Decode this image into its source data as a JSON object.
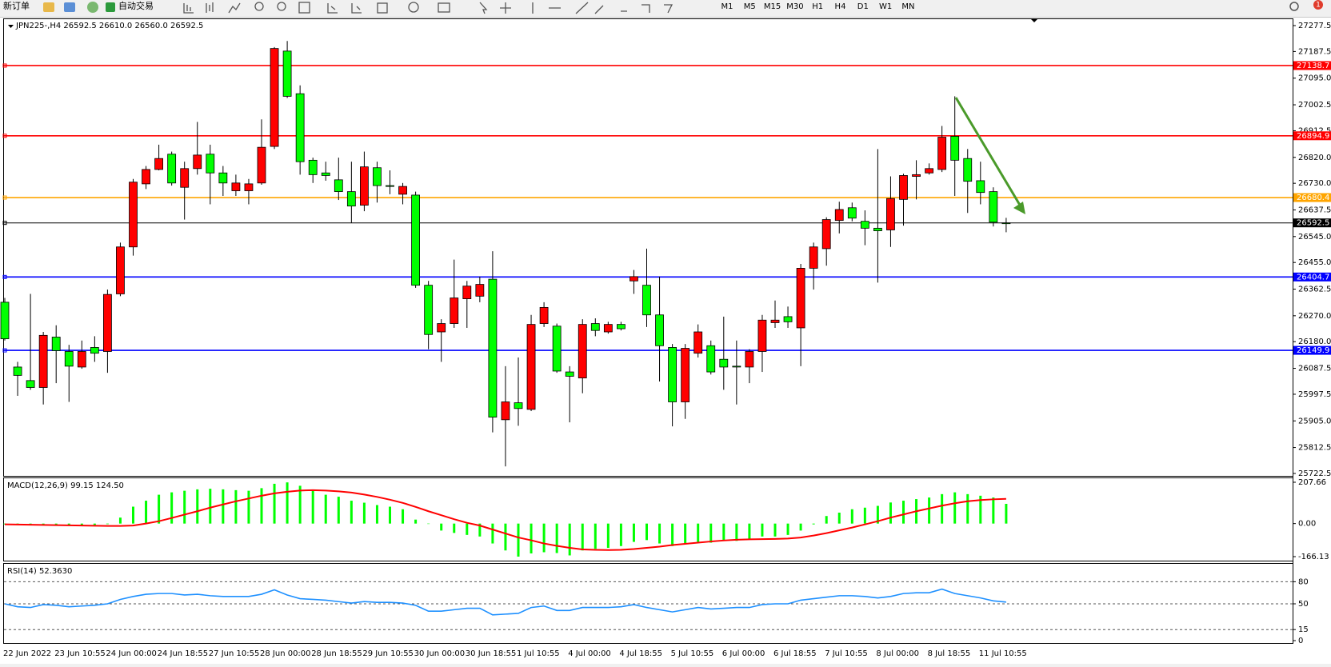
{
  "toolbar": {
    "new_order": "新订单",
    "auto_trading": "自动交易",
    "timeframes": [
      "M1",
      "M5",
      "M15",
      "M30",
      "H1",
      "H4",
      "D1",
      "W1",
      "MN"
    ],
    "badge": 1
  },
  "chart_data": [
    {
      "type": "candlestick",
      "title": "JPN225-,H4  26592.5 26610.0 26560.0 26592.5",
      "categories": [
        "22 Jun 2022",
        null,
        null,
        null,
        "23 Jun 10:55",
        null,
        null,
        null,
        "24 Jun 00:00",
        null,
        null,
        null,
        "24 Jun 18:55",
        null,
        null,
        null,
        "27 Jun 10:55",
        null,
        null,
        null,
        "28 Jun 00:00",
        null,
        null,
        null,
        "28 Jun 18:55",
        null,
        null,
        null,
        "29 Jun 10:55",
        null,
        null,
        null,
        "30 Jun 00:00",
        null,
        null,
        null,
        "30 Jun 18:55",
        null,
        null,
        null,
        "1 Jul 10:55",
        null,
        null,
        null,
        "4 Jul 00:00",
        null,
        null,
        null,
        "4 Jul 18:55",
        null,
        null,
        null,
        "5 Jul 10:55",
        null,
        null,
        null,
        "6 Jul 00:00",
        null,
        null,
        null,
        "6 Jul 18:55",
        null,
        null,
        null,
        "7 Jul 10:55",
        null,
        null,
        null,
        "8 Jul 00:00",
        null,
        null,
        null,
        "8 Jul 18:55",
        null,
        null,
        null,
        "11 Jul 10:55",
        null,
        null
      ],
      "open": [
        26317,
        26092,
        26045,
        26021,
        26196,
        26146,
        26092,
        26160,
        26146,
        26346,
        26509,
        26728,
        26778,
        26831,
        26716,
        26781,
        26831,
        26766,
        26704,
        26704,
        26731,
        26858,
        27189,
        27041,
        26810,
        26766,
        26742,
        26701,
        26654,
        26784,
        26722,
        26692,
        26689,
        26376,
        26214,
        26243,
        26329,
        26338,
        26397,
        25909,
        25968,
        25945,
        26243,
        26234,
        26075,
        26054,
        26243,
        26214,
        26240,
        26391,
        26376,
        26273,
        26160,
        25971,
        26140,
        26166,
        26119,
        26095,
        26092,
        26146,
        26246,
        26267,
        26228,
        26435,
        26503,
        26601,
        26645,
        26598,
        26574,
        26568,
        26674,
        26754,
        26766,
        26778,
        26893,
        26816,
        26739,
        26701,
        26592.5
      ],
      "high": [
        26332,
        26110,
        26346,
        26214,
        26237,
        26169,
        26184,
        26199,
        26361,
        26524,
        26745,
        26790,
        26864,
        26840,
        26805,
        26943,
        26864,
        26790,
        26760,
        26745,
        26952,
        27203,
        27224,
        27070,
        26819,
        26805,
        26819,
        26805,
        26840,
        26805,
        26775,
        26731,
        26701,
        26391,
        26258,
        26465,
        26391,
        26406,
        26494,
        26095,
        26125,
        26273,
        26317,
        26243,
        26095,
        26258,
        26261,
        26249,
        26249,
        26429,
        26503,
        26406,
        26172,
        26172,
        26240,
        26184,
        26267,
        26184,
        26154,
        26273,
        26323,
        26302,
        26450,
        26524,
        26612,
        26666,
        26663,
        26636,
        26849,
        26754,
        26763,
        26810,
        26799,
        26929,
        27032,
        26849,
        26805,
        26716,
        26610
      ],
      "low": [
        26184,
        25992,
        26013,
        25962,
        26036,
        25971,
        26086,
        26110,
        26072,
        26338,
        26479,
        26710,
        26775,
        26722,
        26604,
        26760,
        26657,
        26686,
        26686,
        26657,
        26725,
        26849,
        27026,
        26760,
        26731,
        26739,
        26672,
        26592,
        26633,
        26663,
        26692,
        26657,
        26367,
        26154,
        26110,
        26228,
        26228,
        26317,
        25865,
        25747,
        25888,
        25939,
        26231,
        26072,
        25900,
        26001,
        26199,
        26208,
        26219,
        26346,
        26231,
        26042,
        25886,
        25912,
        26125,
        26066,
        26013,
        25962,
        26036,
        26075,
        26228,
        26228,
        26095,
        26361,
        26444,
        26556,
        26598,
        26515,
        26385,
        26509,
        26583,
        26674,
        26760,
        26769,
        26686,
        26627,
        26657,
        26580,
        26560
      ],
      "close": [
        26190,
        26063,
        26021,
        26202,
        26149,
        26095,
        26146,
        26140,
        26344,
        26509,
        26734,
        26778,
        26816,
        26731,
        26781,
        26828,
        26766,
        26731,
        26731,
        26728,
        26855,
        27198,
        27032,
        26805,
        26760,
        26757,
        26701,
        26651,
        26787,
        26722,
        26719,
        26719,
        26376,
        26205,
        26243,
        26332,
        26373,
        26379,
        25918,
        25971,
        25948,
        26240,
        26299,
        26078,
        26060,
        26240,
        26219,
        26240,
        26225,
        26406,
        26273,
        26166,
        25971,
        26157,
        26214,
        26075,
        26092,
        26092,
        26146,
        26255,
        26255,
        26249,
        26435,
        26509,
        26604,
        26639,
        26609,
        26574,
        26565,
        26677,
        26757,
        26760,
        26781,
        26890,
        26810,
        26737,
        26698,
        26595,
        26592.5
      ],
      "up_color": "#ff0000",
      "down_color": "#00ff00",
      "ylim": [
        25722.5,
        27277.5
      ],
      "yticks": [
        27277.5,
        27187.5,
        {
          "value": 27095,
          "label": "27095.0"
        },
        27002.5,
        26912.5,
        {
          "value": 26820,
          "label": "26820.0"
        },
        {
          "value": 26730,
          "label": "26730.0"
        },
        26637.5,
        {
          "value": 26545,
          "label": "26545.0"
        },
        {
          "value": 26455,
          "label": "26455.0"
        },
        26362.5,
        {
          "value": 26270,
          "label": "26270.0"
        },
        {
          "value": 26180,
          "label": "26180.0"
        },
        26087.5,
        25997.5,
        {
          "value": 25905,
          "label": "25905.0"
        },
        25812.5,
        25722.5
      ],
      "levels": [
        {
          "value": 27138.7,
          "color": "#ff0000"
        },
        {
          "value": 26894.9,
          "color": "#ff0000"
        },
        {
          "value": 26680.4,
          "color": "#ffa500"
        },
        {
          "value": 26592.5,
          "color": "#000000"
        },
        {
          "value": 26404.7,
          "color": "#0000ff"
        },
        {
          "value": 26149.9,
          "color": "#0000ff"
        }
      ]
    },
    {
      "type": "macd",
      "title": "MACD(12,26,9) 99.15 124.50",
      "color": "#00ff00",
      "signal_color": "#ff0000",
      "values": [
        -4,
        -5,
        -6,
        -6,
        -7,
        -8,
        -8,
        -7,
        -3,
        30,
        85,
        115,
        145,
        157,
        165,
        172,
        175,
        172,
        168,
        165,
        178,
        200,
        207,
        190,
        165,
        145,
        135,
        115,
        105,
        93,
        85,
        72,
        20,
        0,
        -35,
        -47,
        -57,
        -65,
        -100,
        -135,
        -166,
        -150,
        -144,
        -148,
        -160,
        -135,
        -127,
        -122,
        -113,
        -92,
        -83,
        -100,
        -113,
        -100,
        -92,
        -96,
        -83,
        -87,
        -78,
        -65,
        -65,
        -57,
        -35,
        -4,
        38,
        55,
        72,
        80,
        89,
        106,
        115,
        123,
        131,
        148,
        157,
        148,
        140,
        131,
        99.15
      ],
      "signal": [
        -4,
        -5,
        -6,
        -7,
        -8,
        -9,
        -10,
        -11,
        -12,
        -12,
        -10,
        0,
        12,
        28,
        45,
        62,
        80,
        96,
        112,
        126,
        140,
        152,
        160,
        166,
        168,
        166,
        162,
        156,
        146,
        134,
        120,
        104,
        84,
        62,
        42,
        22,
        4,
        -10,
        -30,
        -50,
        -70,
        -84,
        -100,
        -112,
        -122,
        -130,
        -132,
        -133,
        -132,
        -128,
        -122,
        -116,
        -108,
        -102,
        -96,
        -90,
        -85,
        -81,
        -79,
        -78,
        -77,
        -75,
        -70,
        -60,
        -48,
        -34,
        -20,
        -4,
        12,
        30,
        46,
        62,
        76,
        90,
        102,
        112,
        118,
        122,
        124.5
      ],
      "ylim": [
        -166.13,
        207.66
      ],
      "yticks": [
        207.66,
        {
          "value": 0,
          "label": "0.00"
        },
        -166.13
      ]
    },
    {
      "type": "line",
      "title": "RSI(14) 52.3630",
      "color": "#1e90ff",
      "values": [
        50,
        46,
        45,
        49,
        48,
        46,
        47,
        48,
        50,
        56,
        60,
        63,
        64,
        64,
        62,
        63,
        61,
        60,
        60,
        60,
        63,
        69,
        62,
        57,
        56,
        55,
        53,
        51,
        53,
        52,
        52,
        51,
        48,
        40,
        40,
        42,
        44,
        44,
        35,
        36,
        37,
        45,
        47,
        41,
        41,
        45,
        45,
        45,
        46,
        49,
        45,
        42,
        39,
        42,
        45,
        43,
        44,
        45,
        45,
        49,
        50,
        50,
        55,
        57,
        59,
        61,
        61,
        60,
        58,
        60,
        64,
        65,
        65,
        70,
        64,
        61,
        58,
        54,
        52.363
      ],
      "ylim": [
        0,
        100
      ],
      "yticks": [
        80,
        50,
        15,
        0
      ]
    }
  ]
}
